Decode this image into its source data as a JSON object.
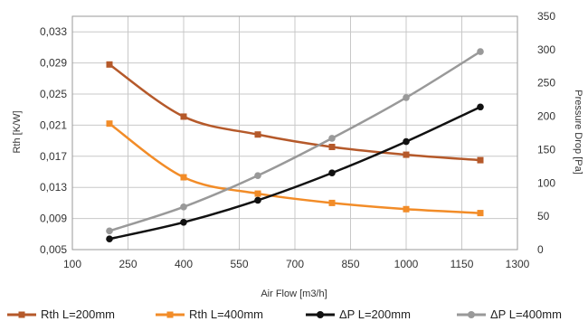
{
  "chart_data": {
    "type": "line",
    "x": [
      200,
      400,
      600,
      800,
      1000,
      1200
    ],
    "xlabel": "Air Flow [m3/h]",
    "xlim": [
      100,
      1300
    ],
    "xticks": [
      "100",
      "250",
      "400",
      "550",
      "700",
      "850",
      "1000",
      "1150",
      "1300"
    ],
    "ylabel": "Rth [K/W]",
    "ylim": [
      0.005,
      0.035
    ],
    "yticks": [
      "0,005",
      "0,009",
      "0,013",
      "0,017",
      "0,021",
      "0,025",
      "0,029",
      "0,033"
    ],
    "y2label": "Pressure Drop [Pa]",
    "y2lim": [
      0,
      350
    ],
    "y2ticks": [
      "0",
      "50",
      "100",
      "150",
      "200",
      "250",
      "300",
      "350"
    ],
    "grid": true,
    "legend_position": "bottom",
    "series": [
      {
        "name": "Rth L=200mm",
        "axis": "left",
        "color": "#b5592a",
        "marker": "square",
        "values": [
          0.0288,
          0.0221,
          0.0198,
          0.0182,
          0.0172,
          0.0165
        ]
      },
      {
        "name": "Rth L=400mm",
        "axis": "left",
        "color": "#f28c28",
        "marker": "square",
        "values": [
          0.0212,
          0.0143,
          0.0122,
          0.011,
          0.0102,
          0.0097
        ]
      },
      {
        "name": "ΔP L=200mm",
        "axis": "right",
        "color": "#111111",
        "marker": "circle",
        "values": [
          16,
          41,
          74,
          115,
          162,
          214
        ]
      },
      {
        "name": "ΔP L=400mm",
        "axis": "right",
        "color": "#999999",
        "marker": "circle",
        "values": [
          28,
          64,
          111,
          167,
          228,
          297
        ]
      }
    ]
  }
}
